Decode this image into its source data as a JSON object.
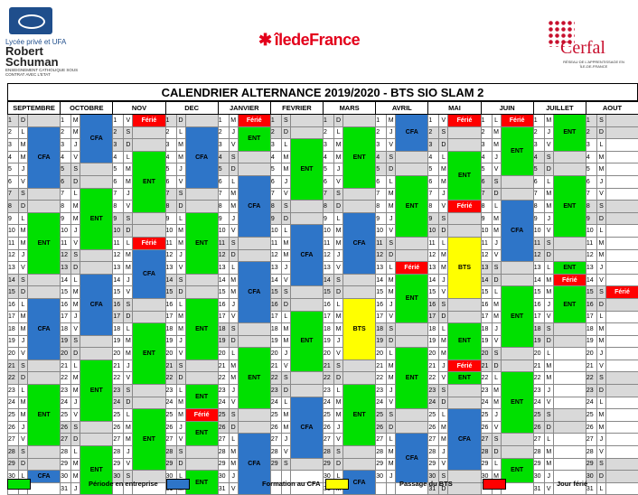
{
  "logos": {
    "left_line1": "Lycée privé et UFA",
    "left_line2": "Robert",
    "left_line3": "Schuman",
    "left_line4": "ENSEIGNEMENT CATHOLIQUE SOUS CONTRAT AVEC L'ETAT",
    "middle": "îledeFrance",
    "right_name": "Cerfal",
    "right_sub": "RÉSEAU DE L'APPRENTISSAGE EN ÎLE-DE-FRANCE"
  },
  "title": "CALENDRIER ALTERNANCE 2019/2020 - BTS SIO SLAM 2",
  "months": [
    "SEPTEMBRE",
    "OCTOBRE",
    "NOV",
    "DEC",
    "JANVIER",
    "FEVRIER",
    "MARS",
    "AVRIL",
    "MAI",
    "JUIN",
    "JUILLET",
    "AOUT"
  ],
  "month_starts": [
    0,
    2,
    5,
    0,
    3,
    6,
    0,
    3,
    5,
    1,
    3,
    6
  ],
  "month_lengths": [
    30,
    31,
    30,
    31,
    31,
    29,
    31,
    30,
    31,
    30,
    31,
    31
  ],
  "weekday_letters": [
    "D",
    "L",
    "M",
    "M",
    "J",
    "V",
    "S"
  ],
  "colors": {
    "entreprise": "#00e000",
    "cfa": "#2e75c8",
    "bts": "#ffff00",
    "ferie": "#ff0000"
  },
  "labels": {
    "cfa": "CFA",
    "ent": "ENT",
    "ferie": "Férié",
    "bts": "BTS"
  },
  "blocks": [
    {
      "m": 0,
      "from": 2,
      "to": 6,
      "t": "cfa"
    },
    {
      "m": 0,
      "from": 9,
      "to": 13,
      "t": "ent"
    },
    {
      "m": 0,
      "from": 16,
      "to": 20,
      "t": "cfa"
    },
    {
      "m": 0,
      "from": 23,
      "to": 27,
      "t": "ent"
    },
    {
      "m": 0,
      "from": 30,
      "to": 30,
      "t": "cfa"
    },
    {
      "m": 1,
      "from": 1,
      "to": 4,
      "t": "cfa"
    },
    {
      "m": 1,
      "from": 7,
      "to": 11,
      "t": "ent"
    },
    {
      "m": 1,
      "from": 14,
      "to": 18,
      "t": "cfa"
    },
    {
      "m": 1,
      "from": 21,
      "to": 25,
      "t": "ent"
    },
    {
      "m": 1,
      "from": 28,
      "to": 31,
      "t": "ent"
    },
    {
      "m": 2,
      "from": 1,
      "to": 1,
      "t": "ferie"
    },
    {
      "m": 2,
      "from": 4,
      "to": 8,
      "t": "ent"
    },
    {
      "m": 2,
      "from": 11,
      "to": 11,
      "t": "ferie"
    },
    {
      "m": 2,
      "from": 12,
      "to": 15,
      "t": "cfa"
    },
    {
      "m": 2,
      "from": 18,
      "to": 22,
      "t": "ent"
    },
    {
      "m": 2,
      "from": 25,
      "to": 29,
      "t": "ent"
    },
    {
      "m": 3,
      "from": 2,
      "to": 6,
      "t": "cfa"
    },
    {
      "m": 3,
      "from": 9,
      "to": 13,
      "t": "ent"
    },
    {
      "m": 3,
      "from": 16,
      "to": 20,
      "t": "ent"
    },
    {
      "m": 3,
      "from": 23,
      "to": 24,
      "t": "ent"
    },
    {
      "m": 3,
      "from": 25,
      "to": 25,
      "t": "ferie"
    },
    {
      "m": 3,
      "from": 26,
      "to": 27,
      "t": "ent"
    },
    {
      "m": 3,
      "from": 30,
      "to": 31,
      "t": "ent"
    },
    {
      "m": 4,
      "from": 1,
      "to": 1,
      "t": "ferie"
    },
    {
      "m": 4,
      "from": 2,
      "to": 3,
      "t": "ent"
    },
    {
      "m": 4,
      "from": 6,
      "to": 10,
      "t": "cfa"
    },
    {
      "m": 4,
      "from": 13,
      "to": 17,
      "t": "cfa"
    },
    {
      "m": 4,
      "from": 20,
      "to": 24,
      "t": "ent"
    },
    {
      "m": 4,
      "from": 27,
      "to": 31,
      "t": "cfa"
    },
    {
      "m": 5,
      "from": 3,
      "to": 7,
      "t": "ent"
    },
    {
      "m": 5,
      "from": 10,
      "to": 14,
      "t": "cfa"
    },
    {
      "m": 5,
      "from": 17,
      "to": 21,
      "t": "ent"
    },
    {
      "m": 5,
      "from": 24,
      "to": 28,
      "t": "cfa"
    },
    {
      "m": 6,
      "from": 2,
      "to": 6,
      "t": "ent"
    },
    {
      "m": 6,
      "from": 9,
      "to": 13,
      "t": "cfa"
    },
    {
      "m": 6,
      "from": 16,
      "to": 20,
      "t": "bts"
    },
    {
      "m": 6,
      "from": 23,
      "to": 27,
      "t": "ent"
    },
    {
      "m": 6,
      "from": 30,
      "to": 31,
      "t": "cfa"
    },
    {
      "m": 7,
      "from": 1,
      "to": 3,
      "t": "cfa"
    },
    {
      "m": 7,
      "from": 6,
      "to": 10,
      "t": "ent"
    },
    {
      "m": 7,
      "from": 13,
      "to": 13,
      "t": "ferie"
    },
    {
      "m": 7,
      "from": 14,
      "to": 17,
      "t": "ent"
    },
    {
      "m": 7,
      "from": 20,
      "to": 24,
      "t": "ent"
    },
    {
      "m": 7,
      "from": 27,
      "to": 30,
      "t": "cfa"
    },
    {
      "m": 8,
      "from": 1,
      "to": 1,
      "t": "ferie"
    },
    {
      "m": 8,
      "from": 4,
      "to": 7,
      "t": "ent"
    },
    {
      "m": 8,
      "from": 8,
      "to": 8,
      "t": "ferie"
    },
    {
      "m": 8,
      "from": 11,
      "to": 15,
      "t": "bts"
    },
    {
      "m": 8,
      "from": 18,
      "to": 20,
      "t": "ent"
    },
    {
      "m": 8,
      "from": 21,
      "to": 21,
      "t": "ferie"
    },
    {
      "m": 8,
      "from": 22,
      "to": 22,
      "t": "ent"
    },
    {
      "m": 8,
      "from": 25,
      "to": 29,
      "t": "cfa"
    },
    {
      "m": 9,
      "from": 1,
      "to": 1,
      "t": "ferie"
    },
    {
      "m": 9,
      "from": 2,
      "to": 5,
      "t": "ent"
    },
    {
      "m": 9,
      "from": 8,
      "to": 12,
      "t": "cfa"
    },
    {
      "m": 9,
      "from": 15,
      "to": 19,
      "t": "ent"
    },
    {
      "m": 9,
      "from": 22,
      "to": 26,
      "t": "ent"
    },
    {
      "m": 9,
      "from": 29,
      "to": 30,
      "t": "ent"
    },
    {
      "m": 10,
      "from": 1,
      "to": 3,
      "t": "ent"
    },
    {
      "m": 10,
      "from": 6,
      "to": 10,
      "t": "ent"
    },
    {
      "m": 10,
      "from": 13,
      "to": 13,
      "t": "ent"
    },
    {
      "m": 10,
      "from": 14,
      "to": 14,
      "t": "ferie"
    },
    {
      "m": 10,
      "from": 15,
      "to": 17,
      "t": "ent"
    },
    {
      "m": 11,
      "from": 15,
      "to": 15,
      "t": "ferie"
    }
  ],
  "legend": [
    {
      "label": "Période en entreprise",
      "color": "#00e000"
    },
    {
      "label": "Formation au CFA",
      "color": "#2e75c8"
    },
    {
      "label": "Passage du BTS",
      "color": "#ffff00"
    },
    {
      "label": "Jour férié",
      "color": "#ff0000"
    }
  ]
}
